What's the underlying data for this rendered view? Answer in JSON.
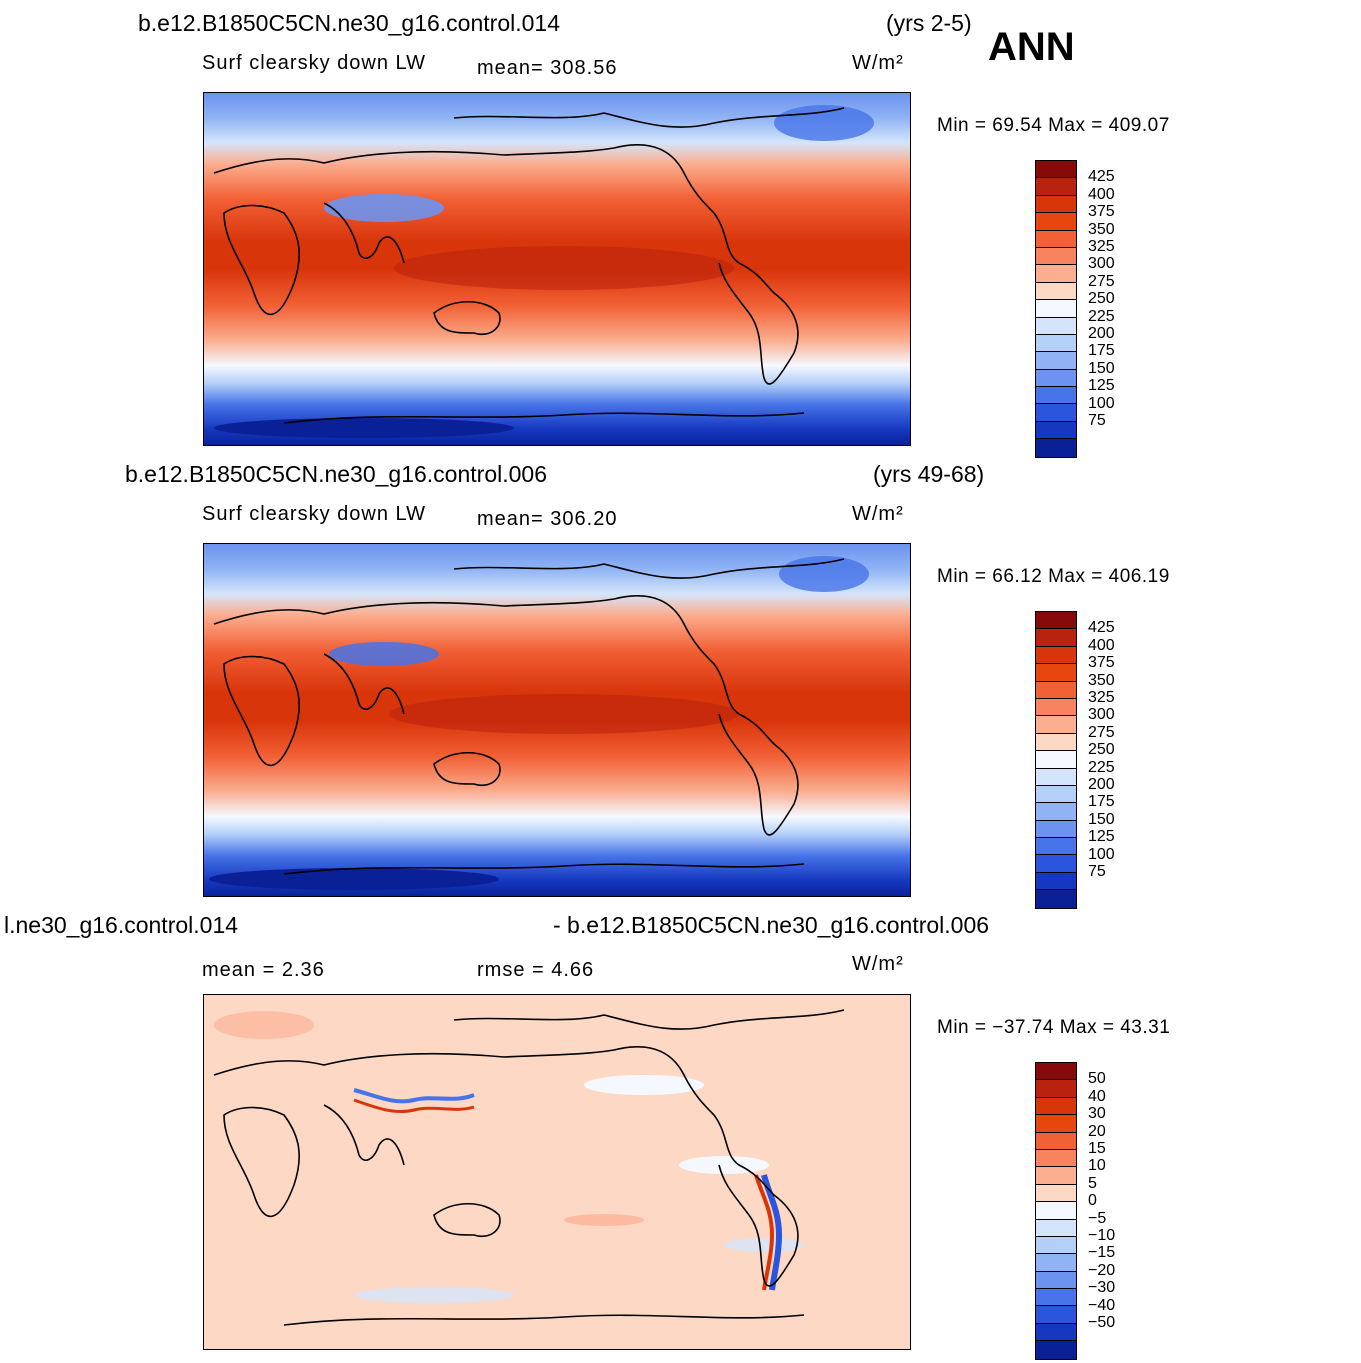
{
  "season": "ANN",
  "panels": [
    {
      "case": "b.e12.B1850C5CN.ne30_g16.control.014",
      "years": "(yrs 2-5)",
      "variable": "Surf clearsky down LW",
      "stat": "mean=  308.56",
      "units": "W/m²",
      "minmax": "Min =   69.54  Max  =  409.07",
      "colorbar": {
        "labels": [
          "425",
          "400",
          "375",
          "350",
          "325",
          "300",
          "275",
          "250",
          "225",
          "200",
          "175",
          "150",
          "125",
          "100",
          "75"
        ],
        "colors": [
          "#870a0a",
          "#b8220e",
          "#d9350b",
          "#e8460f",
          "#f26035",
          "#f8845f",
          "#fbae90",
          "#fdd9c5",
          "#f5f9ff",
          "#d4e5fb",
          "#b4cff8",
          "#8fb3f4",
          "#6b93ef",
          "#4774e8",
          "#2a55dc",
          "#1638c0",
          "#0a2096"
        ]
      },
      "map": {
        "type": "absolute",
        "mean": 308.56,
        "min": 69.54,
        "max": 409.07
      }
    },
    {
      "case": "b.e12.B1850C5CN.ne30_g16.control.006",
      "years": "(yrs 49-68)",
      "variable": "Surf clearsky down LW",
      "stat": "mean=  306.20",
      "units": "W/m²",
      "minmax": "Min =   66.12  Max  =  406.19",
      "colorbar": {
        "labels": [
          "425",
          "400",
          "375",
          "350",
          "325",
          "300",
          "275",
          "250",
          "225",
          "200",
          "175",
          "150",
          "125",
          "100",
          "75"
        ],
        "colors": [
          "#870a0a",
          "#b8220e",
          "#d9350b",
          "#e8460f",
          "#f26035",
          "#f8845f",
          "#fbae90",
          "#fdd9c5",
          "#f5f9ff",
          "#d4e5fb",
          "#b4cff8",
          "#8fb3f4",
          "#6b93ef",
          "#4774e8",
          "#2a55dc",
          "#1638c0",
          "#0a2096"
        ]
      },
      "map": {
        "type": "absolute",
        "mean": 306.2,
        "min": 66.12,
        "max": 406.19
      }
    },
    {
      "case_left": "l.ne30_g16.control.014",
      "case_right": "- b.e12.B1850C5CN.ne30_g16.control.006",
      "stat_mean": "mean =     2.36",
      "stat_rmse": "rmse =     4.66",
      "units": "W/m²",
      "minmax": "Min  = −37.74  Max  =    43.31",
      "colorbar": {
        "labels": [
          "50",
          "40",
          "30",
          "20",
          "15",
          "10",
          "5",
          "0",
          "−5",
          "−10",
          "−15",
          "−20",
          "−30",
          "−40",
          "−50"
        ],
        "colors": [
          "#870a0a",
          "#b8220e",
          "#d9350b",
          "#e8460f",
          "#f26035",
          "#f8845f",
          "#fbae90",
          "#fdd9c5",
          "#f5f9ff",
          "#d4e5fb",
          "#b4cff8",
          "#8fb3f4",
          "#6b93ef",
          "#4774e8",
          "#2a55dc",
          "#1638c0",
          "#0a2096"
        ]
      },
      "map": {
        "type": "difference",
        "mean": 2.36,
        "rmse": 4.66,
        "min": -37.74,
        "max": 43.31
      }
    }
  ]
}
